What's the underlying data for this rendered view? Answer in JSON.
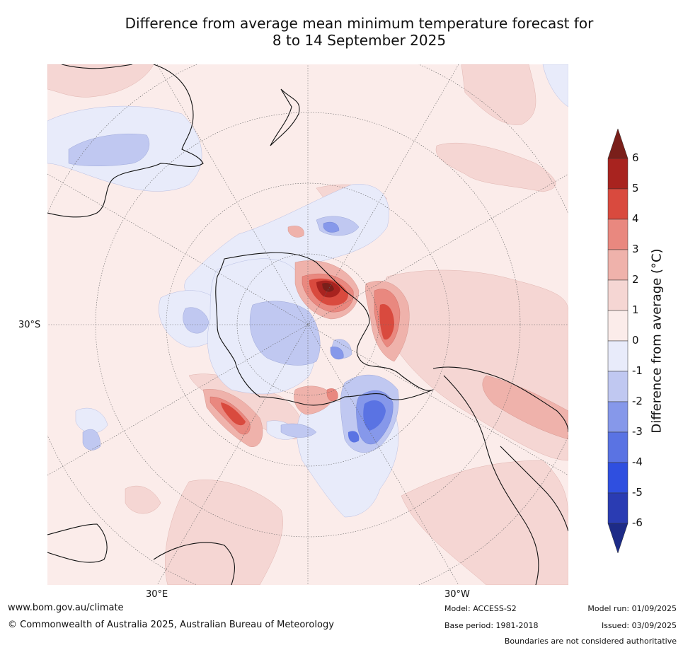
{
  "title_line1": "Difference from average mean minimum temperature forecast for",
  "title_line2": "8 to 14 September 2025",
  "map_labels": {
    "lat_30s": "30°S",
    "lon_30e": "30°E",
    "lon_30w": "30°W"
  },
  "colorbar": {
    "title": "Difference from average (°C)",
    "ticks": [
      "6",
      "5",
      "4",
      "3",
      "2",
      "1",
      "0",
      "-1",
      "-2",
      "-3",
      "-4",
      "-5",
      "-6"
    ],
    "colors": {
      "above_6": "#7a1f1a",
      "5_to_6": "#a8231f",
      "4_to_5": "#d94a3e",
      "3_to_4": "#e9887f",
      "2_to_3": "#efb2ab",
      "1_to_2": "#f5d6d3",
      "0_to_1": "#fbecea",
      "minus1_to_0": "#e8ebfa",
      "minus2_to_minus1": "#c0c8f1",
      "minus3_to_minus2": "#8698ea",
      "minus4_to_minus3": "#5a73e3",
      "minus5_to_minus4": "#2f4fe0",
      "minus6_to_minus5": "#2a3cb3",
      "below_minus6": "#1d2b87"
    }
  },
  "footer": {
    "website": "www.bom.gov.au/climate",
    "copyright": "© Commonwealth of Australia 2025, Australian Bureau of Meteorology",
    "model": "Model: ACCESS-S2",
    "base_period": "Base period: 1981-2018",
    "model_run": "Model run: 01/09/2025",
    "issued": "Issued: 03/09/2025",
    "disclaimer": "Boundaries are not considered authoritative"
  }
}
